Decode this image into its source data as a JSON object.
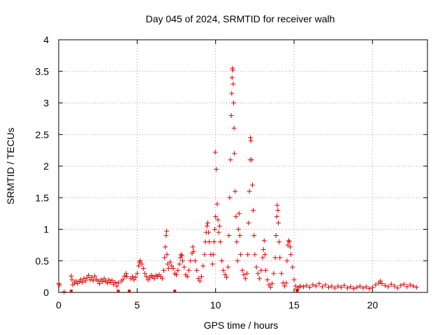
{
  "chart_data": {
    "type": "scatter",
    "title": "Day 045 of 2024, SRMTID for receiver walh",
    "xlabel": "GPS time / hours",
    "ylabel": "SRMTID / TECUs",
    "xlim": [
      0,
      23.5
    ],
    "ylim": [
      0,
      4
    ],
    "xticks": [
      0,
      5,
      10,
      15,
      20
    ],
    "yticks": [
      0,
      0.5,
      1,
      1.5,
      2,
      2.5,
      3,
      3.5,
      4
    ],
    "xtick_labels": [
      "0",
      "5",
      "10",
      "15",
      "20"
    ],
    "ytick_labels": [
      "0",
      "0.5",
      "1",
      "1.5",
      "2",
      "2.5",
      "3",
      "3.5",
      "4"
    ],
    "grid": true,
    "marker": "+",
    "color": "#e00000",
    "series": [
      {
        "name": "SRMTID",
        "points": [
          [
            0.0,
            0.14
          ],
          [
            0.05,
            0.12
          ],
          [
            0.35,
            0.01
          ],
          [
            0.8,
            0.26
          ],
          [
            0.85,
            0.2
          ],
          [
            0.9,
            0.12
          ],
          [
            1.0,
            0.15
          ],
          [
            1.1,
            0.18
          ],
          [
            1.2,
            0.14
          ],
          [
            1.3,
            0.17
          ],
          [
            1.4,
            0.2
          ],
          [
            1.5,
            0.16
          ],
          [
            1.6,
            0.22
          ],
          [
            1.7,
            0.18
          ],
          [
            1.8,
            0.23
          ],
          [
            1.9,
            0.27
          ],
          [
            2.0,
            0.2
          ],
          [
            2.1,
            0.24
          ],
          [
            2.2,
            0.19
          ],
          [
            2.3,
            0.26
          ],
          [
            2.4,
            0.21
          ],
          [
            2.5,
            0.18
          ],
          [
            2.6,
            0.14
          ],
          [
            2.7,
            0.2
          ],
          [
            2.8,
            0.17
          ],
          [
            2.9,
            0.22
          ],
          [
            3.0,
            0.18
          ],
          [
            3.1,
            0.15
          ],
          [
            3.2,
            0.2
          ],
          [
            3.3,
            0.16
          ],
          [
            3.4,
            0.19
          ],
          [
            3.5,
            0.13
          ],
          [
            3.6,
            0.16
          ],
          [
            3.7,
            0.1
          ],
          [
            3.8,
            0.15
          ],
          [
            4.0,
            0.18
          ],
          [
            4.1,
            0.21
          ],
          [
            4.2,
            0.26
          ],
          [
            4.3,
            0.3
          ],
          [
            4.35,
            0.25
          ],
          [
            4.6,
            0.22
          ],
          [
            4.7,
            0.25
          ],
          [
            4.8,
            0.2
          ],
          [
            4.9,
            0.24
          ],
          [
            5.0,
            0.3
          ],
          [
            5.1,
            0.42
          ],
          [
            5.15,
            0.48
          ],
          [
            5.2,
            0.5
          ],
          [
            5.3,
            0.45
          ],
          [
            5.4,
            0.38
          ],
          [
            5.5,
            0.3
          ],
          [
            5.6,
            0.25
          ],
          [
            5.7,
            0.2
          ],
          [
            5.8,
            0.23
          ],
          [
            5.9,
            0.27
          ],
          [
            6.0,
            0.25
          ],
          [
            6.1,
            0.22
          ],
          [
            6.2,
            0.27
          ],
          [
            6.3,
            0.25
          ],
          [
            6.4,
            0.28
          ],
          [
            6.5,
            0.25
          ],
          [
            6.6,
            0.22
          ],
          [
            6.7,
            0.35
          ],
          [
            6.75,
            0.55
          ],
          [
            6.8,
            0.72
          ],
          [
            6.85,
            0.9
          ],
          [
            6.88,
            0.97
          ],
          [
            6.9,
            0.6
          ],
          [
            6.95,
            0.45
          ],
          [
            7.0,
            0.38
          ],
          [
            7.1,
            0.48
          ],
          [
            7.2,
            0.42
          ],
          [
            7.3,
            0.38
          ],
          [
            7.4,
            0.3
          ],
          [
            7.5,
            0.28
          ],
          [
            7.6,
            0.35
          ],
          [
            7.7,
            0.45
          ],
          [
            7.75,
            0.55
          ],
          [
            7.8,
            0.6
          ],
          [
            7.85,
            0.58
          ],
          [
            7.9,
            0.5
          ],
          [
            8.0,
            0.4
          ],
          [
            8.1,
            0.28
          ],
          [
            8.2,
            0.25
          ],
          [
            8.3,
            0.35
          ],
          [
            8.4,
            0.5
          ],
          [
            8.5,
            0.62
          ],
          [
            8.55,
            0.72
          ],
          [
            8.6,
            0.65
          ],
          [
            8.7,
            0.5
          ],
          [
            8.8,
            0.35
          ],
          [
            8.9,
            0.22
          ],
          [
            9.0,
            0.18
          ],
          [
            9.1,
            0.25
          ],
          [
            9.2,
            0.42
          ],
          [
            9.3,
            0.6
          ],
          [
            9.35,
            0.8
          ],
          [
            9.4,
            0.95
          ],
          [
            9.45,
            1.05
          ],
          [
            9.5,
            1.1
          ],
          [
            9.55,
            0.95
          ],
          [
            9.6,
            0.8
          ],
          [
            9.7,
            0.6
          ],
          [
            9.8,
            0.45
          ],
          [
            9.85,
            0.6
          ],
          [
            9.9,
            0.8
          ],
          [
            9.95,
            1.0
          ],
          [
            9.98,
            2.22
          ],
          [
            10.0,
            1.2
          ],
          [
            10.05,
            1.95
          ],
          [
            10.1,
            1.4
          ],
          [
            10.15,
            1.15
          ],
          [
            10.2,
            0.95
          ],
          [
            10.25,
            1.05
          ],
          [
            10.3,
            0.8
          ],
          [
            10.4,
            0.5
          ],
          [
            10.5,
            0.35
          ],
          [
            10.6,
            0.28
          ],
          [
            10.7,
            0.24
          ],
          [
            10.8,
            0.4
          ],
          [
            10.85,
            0.9
          ],
          [
            10.9,
            1.5
          ],
          [
            10.95,
            2.1
          ],
          [
            11.0,
            2.8
          ],
          [
            11.03,
            3.15
          ],
          [
            11.05,
            3.4
          ],
          [
            11.08,
            3.55
          ],
          [
            11.1,
            3.52
          ],
          [
            11.12,
            3.3
          ],
          [
            11.15,
            3.0
          ],
          [
            11.18,
            2.6
          ],
          [
            11.2,
            2.2
          ],
          [
            11.25,
            1.6
          ],
          [
            11.3,
            1.2
          ],
          [
            11.35,
            0.8
          ],
          [
            11.4,
            0.5
          ],
          [
            11.45,
            1.0
          ],
          [
            11.5,
            1.25
          ],
          [
            11.55,
            0.9
          ],
          [
            11.6,
            0.6
          ],
          [
            11.7,
            0.35
          ],
          [
            11.8,
            0.28
          ],
          [
            11.9,
            0.22
          ],
          [
            12.0,
            0.3
          ],
          [
            12.05,
            0.6
          ],
          [
            12.1,
            1.1
          ],
          [
            12.15,
            1.6
          ],
          [
            12.2,
            2.1
          ],
          [
            12.22,
            2.45
          ],
          [
            12.25,
            2.4
          ],
          [
            12.3,
            2.1
          ],
          [
            12.35,
            1.7
          ],
          [
            12.4,
            1.3
          ],
          [
            12.45,
            0.9
          ],
          [
            12.5,
            0.6
          ],
          [
            12.6,
            0.4
          ],
          [
            12.7,
            0.3
          ],
          [
            12.8,
            0.22
          ],
          [
            12.9,
            0.35
          ],
          [
            13.0,
            0.55
          ],
          [
            13.05,
            0.68
          ],
          [
            13.1,
            0.82
          ],
          [
            13.15,
            0.6
          ],
          [
            13.2,
            0.35
          ],
          [
            13.3,
            0.2
          ],
          [
            13.4,
            0.12
          ],
          [
            13.5,
            0.08
          ],
          [
            13.6,
            0.14
          ],
          [
            13.7,
            0.3
          ],
          [
            13.8,
            0.55
          ],
          [
            13.85,
            0.9
          ],
          [
            13.9,
            1.2
          ],
          [
            13.93,
            1.38
          ],
          [
            13.97,
            1.3
          ],
          [
            14.0,
            1.1
          ],
          [
            14.05,
            0.8
          ],
          [
            14.1,
            0.55
          ],
          [
            14.2,
            0.3
          ],
          [
            14.3,
            0.15
          ],
          [
            14.4,
            0.1
          ],
          [
            14.5,
            0.15
          ],
          [
            14.55,
            0.5
          ],
          [
            14.6,
            0.75
          ],
          [
            14.65,
            0.82
          ],
          [
            14.7,
            0.8
          ],
          [
            14.75,
            0.72
          ],
          [
            14.8,
            0.6
          ],
          [
            14.9,
            0.4
          ],
          [
            15.0,
            0.2
          ],
          [
            15.1,
            0.1
          ],
          [
            15.2,
            0.05
          ],
          [
            15.3,
            0.08
          ],
          [
            15.4,
            0.1
          ],
          [
            15.6,
            0.09
          ],
          [
            15.8,
            0.11
          ],
          [
            16.0,
            0.08
          ],
          [
            16.2,
            0.12
          ],
          [
            16.4,
            0.1
          ],
          [
            16.6,
            0.14
          ],
          [
            16.8,
            0.09
          ],
          [
            17.0,
            0.12
          ],
          [
            17.2,
            0.08
          ],
          [
            17.4,
            0.1
          ],
          [
            17.6,
            0.07
          ],
          [
            17.8,
            0.1
          ],
          [
            18.0,
            0.08
          ],
          [
            18.2,
            0.11
          ],
          [
            18.4,
            0.07
          ],
          [
            18.6,
            0.09
          ],
          [
            18.8,
            0.06
          ],
          [
            19.0,
            0.08
          ],
          [
            19.2,
            0.1
          ],
          [
            19.4,
            0.07
          ],
          [
            19.6,
            0.09
          ],
          [
            19.8,
            0.06
          ],
          [
            20.0,
            0.08
          ],
          [
            20.2,
            0.12
          ],
          [
            20.4,
            0.15
          ],
          [
            20.5,
            0.18
          ],
          [
            20.6,
            0.14
          ],
          [
            20.8,
            0.11
          ],
          [
            21.0,
            0.09
          ],
          [
            21.2,
            0.13
          ],
          [
            21.4,
            0.1
          ],
          [
            21.6,
            0.07
          ],
          [
            21.8,
            0.11
          ],
          [
            22.0,
            0.13
          ],
          [
            22.2,
            0.09
          ],
          [
            22.4,
            0.12
          ],
          [
            22.6,
            0.1
          ],
          [
            22.8,
            0.08
          ]
        ]
      }
    ],
    "near_zero_points_x": [
      0.8,
      3.8,
      4.5,
      7.4,
      15.2
    ]
  }
}
